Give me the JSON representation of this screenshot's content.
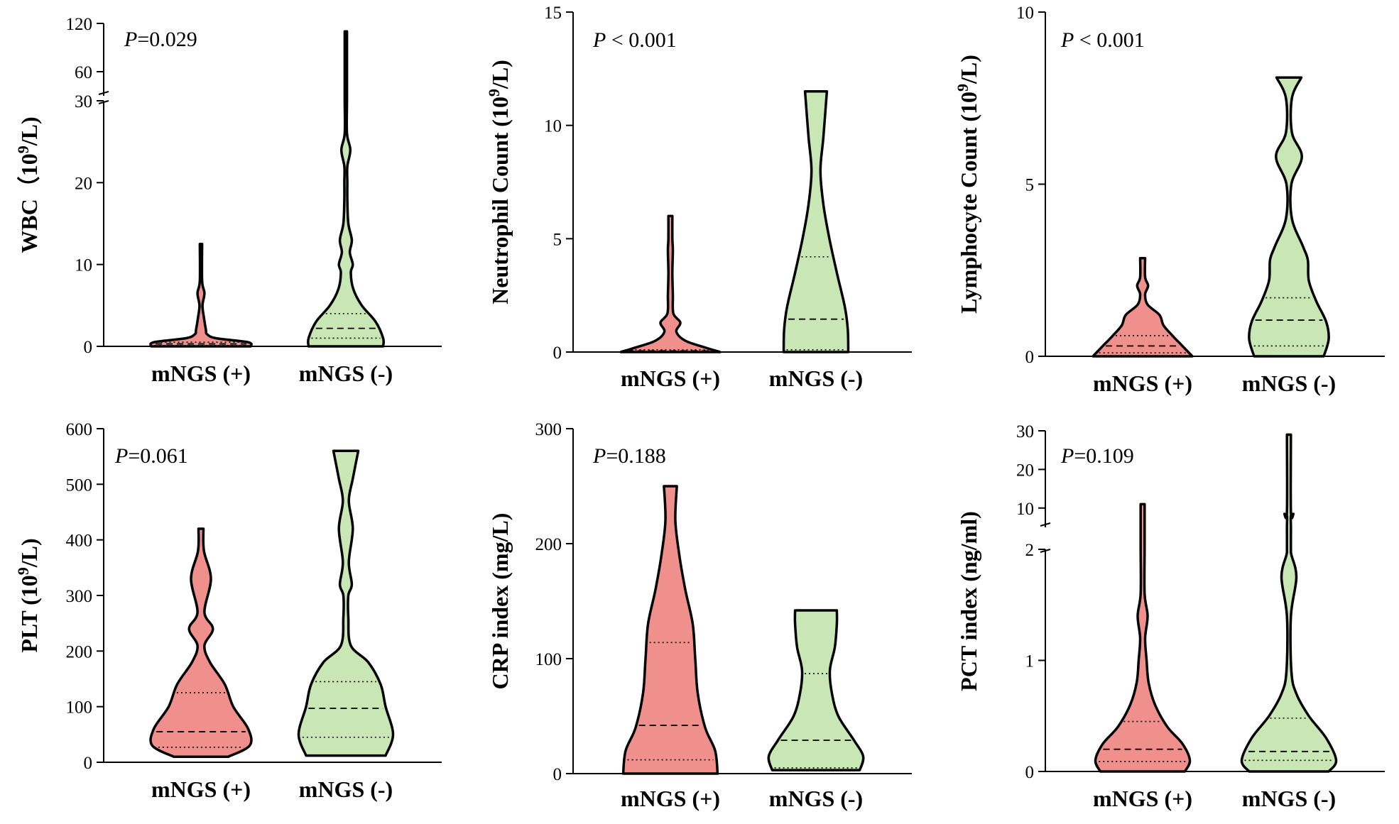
{
  "colors": {
    "positive": "#f0908c",
    "negative": "#c9e7b5",
    "stroke": "#000000"
  },
  "chart_data": [
    {
      "type": "violin",
      "ylabel_prefix": "WBC（10",
      "ylabel_sup": "9",
      "ylabel_suffix": "/L)",
      "p_label": "P",
      "p_text": "=0.029",
      "categories": [
        "mNGS (+)",
        "mNGS (-)"
      ],
      "y_segments": [
        {
          "range": [
            0,
            30
          ],
          "ticks": [
            0,
            10,
            20,
            30
          ]
        },
        {
          "range": [
            30,
            120
          ],
          "ticks": [
            60,
            120
          ]
        }
      ],
      "series": [
        {
          "name": "mNGS (+)",
          "color_key": "positive",
          "min": 0,
          "max": 12.5,
          "q1": 0.1,
          "median": 0.3,
          "q3": 0.5,
          "density": [
            [
              0,
              1.0
            ],
            [
              0.5,
              0.95
            ],
            [
              1,
              0.3
            ],
            [
              1.5,
              0.12
            ],
            [
              2,
              0.1
            ],
            [
              3.5,
              0.06
            ],
            [
              5,
              0.03
            ],
            [
              6.5,
              0.07
            ],
            [
              8,
              0.02
            ],
            [
              12.5,
              0.02
            ]
          ]
        },
        {
          "name": "mNGS (-)",
          "color_key": "negative",
          "min": 0,
          "max": 110,
          "q1": 1.0,
          "median": 2.2,
          "q3": 4.0,
          "density": [
            [
              0,
              0.75
            ],
            [
              1,
              0.75
            ],
            [
              3,
              0.6
            ],
            [
              5,
              0.32
            ],
            [
              7,
              0.15
            ],
            [
              9,
              0.1
            ],
            [
              10,
              0.14
            ],
            [
              11.5,
              0.08
            ],
            [
              13,
              0.12
            ],
            [
              15,
              0.05
            ],
            [
              18,
              0.03
            ],
            [
              20,
              0.03
            ],
            [
              22,
              0.03
            ],
            [
              24,
              0.09
            ],
            [
              26,
              0.02
            ],
            [
              30,
              0.02
            ],
            [
              50,
              0.015
            ],
            [
              110,
              0.015
            ]
          ]
        }
      ]
    },
    {
      "type": "violin",
      "ylabel_prefix": "Neutrophil Count (10",
      "ylabel_sup": "9",
      "ylabel_suffix": "/L)",
      "p_label": "P",
      "p_text": " < 0.001",
      "categories": [
        "mNGS (+)",
        "mNGS (-)"
      ],
      "y_segments": [
        {
          "range": [
            0,
            15
          ],
          "ticks": [
            0,
            5,
            10,
            15
          ]
        }
      ],
      "series": [
        {
          "name": "mNGS (+)",
          "color_key": "positive",
          "min": 0,
          "max": 6,
          "q1": 0.02,
          "median": 0.05,
          "q3": 0.1,
          "density": [
            [
              0,
              1.0
            ],
            [
              0.2,
              0.7
            ],
            [
              0.5,
              0.3
            ],
            [
              0.9,
              0.12
            ],
            [
              1.3,
              0.2
            ],
            [
              1.7,
              0.06
            ],
            [
              2.5,
              0.05
            ],
            [
              3.5,
              0.04
            ],
            [
              4.5,
              0.05
            ],
            [
              5,
              0.04
            ],
            [
              6,
              0.04
            ]
          ]
        },
        {
          "name": "mNGS (-)",
          "color_key": "negative",
          "min": 0,
          "max": 11.5,
          "q1": 0.1,
          "median": 1.45,
          "q3": 4.2,
          "density": [
            [
              0,
              0.65
            ],
            [
              1,
              0.64
            ],
            [
              2,
              0.58
            ],
            [
              3.5,
              0.42
            ],
            [
              5,
              0.27
            ],
            [
              6.5,
              0.15
            ],
            [
              8,
              0.09
            ],
            [
              9.5,
              0.15
            ],
            [
              11.5,
              0.22
            ]
          ]
        }
      ]
    },
    {
      "type": "violin",
      "ylabel_prefix": "Lymphocyte Count (10",
      "ylabel_sup": "9",
      "ylabel_suffix": "/L)",
      "p_label": "P",
      "p_text": " < 0.001",
      "categories": [
        "mNGS (+)",
        "mNGS (-)"
      ],
      "y_segments": [
        {
          "range": [
            0,
            10
          ],
          "ticks": [
            0,
            5,
            10
          ]
        }
      ],
      "series": [
        {
          "name": "mNGS (+)",
          "color_key": "positive",
          "min": 0,
          "max": 2.85,
          "q1": 0.1,
          "median": 0.3,
          "q3": 0.6,
          "density": [
            [
              0,
              1.0
            ],
            [
              0.3,
              0.8
            ],
            [
              0.6,
              0.6
            ],
            [
              0.9,
              0.42
            ],
            [
              1.2,
              0.34
            ],
            [
              1.5,
              0.1
            ],
            [
              1.8,
              0.05
            ],
            [
              2.05,
              0.11
            ],
            [
              2.3,
              0.05
            ],
            [
              2.85,
              0.05
            ]
          ]
        },
        {
          "name": "mNGS (-)",
          "color_key": "negative",
          "min": 0,
          "max": 8.1,
          "q1": 0.3,
          "median": 1.05,
          "q3": 1.7,
          "density": [
            [
              0,
              0.7
            ],
            [
              0.5,
              0.8
            ],
            [
              1,
              0.75
            ],
            [
              1.6,
              0.55
            ],
            [
              2.2,
              0.4
            ],
            [
              2.8,
              0.38
            ],
            [
              3.2,
              0.28
            ],
            [
              4,
              0.06
            ],
            [
              5,
              0.05
            ],
            [
              5.8,
              0.26
            ],
            [
              6.5,
              0.06
            ],
            [
              7.5,
              0.06
            ],
            [
              8.1,
              0.25
            ]
          ]
        }
      ]
    },
    {
      "type": "violin",
      "ylabel_prefix": "PLT (10",
      "ylabel_sup": "9",
      "ylabel_suffix": "/L)",
      "p_label": "P",
      "p_text": "=0.061",
      "categories": [
        "mNGS (+)",
        "mNGS (-)"
      ],
      "y_segments": [
        {
          "range": [
            0,
            600
          ],
          "ticks": [
            0,
            100,
            200,
            300,
            400,
            500,
            600
          ]
        }
      ],
      "series": [
        {
          "name": "mNGS (+)",
          "color_key": "positive",
          "min": 10,
          "max": 420,
          "q1": 27,
          "median": 55,
          "q3": 125,
          "density": [
            [
              10,
              0.55
            ],
            [
              30,
              0.98
            ],
            [
              60,
              0.95
            ],
            [
              100,
              0.65
            ],
            [
              140,
              0.48
            ],
            [
              180,
              0.18
            ],
            [
              210,
              0.07
            ],
            [
              240,
              0.24
            ],
            [
              270,
              0.07
            ],
            [
              330,
              0.2
            ],
            [
              380,
              0.06
            ],
            [
              420,
              0.05
            ]
          ]
        },
        {
          "name": "mNGS (-)",
          "color_key": "negative",
          "min": 12,
          "max": 560,
          "q1": 45,
          "median": 97,
          "q3": 145,
          "density": [
            [
              12,
              0.8
            ],
            [
              50,
              0.95
            ],
            [
              100,
              0.8
            ],
            [
              140,
              0.7
            ],
            [
              180,
              0.45
            ],
            [
              210,
              0.1
            ],
            [
              260,
              0.05
            ],
            [
              300,
              0.05
            ],
            [
              320,
              0.12
            ],
            [
              360,
              0.06
            ],
            [
              420,
              0.14
            ],
            [
              470,
              0.06
            ],
            [
              510,
              0.14
            ],
            [
              560,
              0.25
            ]
          ]
        }
      ]
    },
    {
      "type": "violin",
      "ylabel_prefix": "CRP index (mg/L)",
      "ylabel_sup": "",
      "ylabel_suffix": "",
      "p_label": "P",
      "p_text": "=0.188",
      "categories": [
        "mNGS (+)",
        "mNGS (-)"
      ],
      "y_segments": [
        {
          "range": [
            0,
            300
          ],
          "ticks": [
            0,
            100,
            200,
            300
          ]
        }
      ],
      "series": [
        {
          "name": "mNGS (+)",
          "color_key": "positive",
          "min": 0,
          "max": 250,
          "q1": 12,
          "median": 42,
          "q3": 114,
          "density": [
            [
              0,
              0.95
            ],
            [
              20,
              0.9
            ],
            [
              40,
              0.7
            ],
            [
              70,
              0.55
            ],
            [
              100,
              0.5
            ],
            [
              130,
              0.45
            ],
            [
              160,
              0.3
            ],
            [
              190,
              0.18
            ],
            [
              220,
              0.1
            ],
            [
              250,
              0.13
            ]
          ]
        },
        {
          "name": "mNGS (-)",
          "color_key": "negative",
          "min": 3,
          "max": 142,
          "q1": 5,
          "median": 29,
          "q3": 87,
          "density": [
            [
              3,
              0.88
            ],
            [
              15,
              0.95
            ],
            [
              30,
              0.75
            ],
            [
              50,
              0.45
            ],
            [
              70,
              0.32
            ],
            [
              90,
              0.28
            ],
            [
              110,
              0.38
            ],
            [
              130,
              0.42
            ],
            [
              142,
              0.42
            ]
          ]
        }
      ]
    },
    {
      "type": "violin",
      "ylabel_prefix": "PCT index (ng/ml)",
      "ylabel_sup": "",
      "ylabel_suffix": "",
      "p_label": "P",
      "p_text": "=0.109",
      "categories": [
        "mNGS (+)",
        "mNGS (-)"
      ],
      "y_segments": [
        {
          "range": [
            0,
            2
          ],
          "ticks": [
            0,
            1,
            2
          ]
        },
        {
          "range": [
            5,
            30
          ],
          "ticks": [
            10,
            20,
            30
          ]
        }
      ],
      "series": [
        {
          "name": "mNGS (+)",
          "color_key": "positive",
          "min": 0,
          "max": 11,
          "q1": 0.09,
          "median": 0.2,
          "q3": 0.45,
          "density": [
            [
              0,
              0.85
            ],
            [
              0.1,
              0.95
            ],
            [
              0.25,
              0.8
            ],
            [
              0.4,
              0.5
            ],
            [
              0.6,
              0.25
            ],
            [
              0.8,
              0.12
            ],
            [
              1,
              0.08
            ],
            [
              1.2,
              0.05
            ],
            [
              1.4,
              0.1
            ],
            [
              1.6,
              0.04
            ],
            [
              2,
              0.04
            ],
            [
              5,
              0.04
            ],
            [
              11,
              0.04
            ]
          ]
        },
        {
          "name": "mNGS (-)",
          "color_key": "negative",
          "min": 0,
          "max": 29,
          "q1": 0.1,
          "median": 0.18,
          "q3": 0.48,
          "density": [
            [
              0,
              0.8
            ],
            [
              0.1,
              0.95
            ],
            [
              0.3,
              0.75
            ],
            [
              0.5,
              0.4
            ],
            [
              0.7,
              0.15
            ],
            [
              0.9,
              0.05
            ],
            [
              1.4,
              0.04
            ],
            [
              1.75,
              0.15
            ],
            [
              1.95,
              0.05
            ],
            [
              2,
              0.04
            ],
            [
              5,
              0.04
            ],
            [
              8,
              0.04
            ],
            [
              8.5,
              0.09
            ],
            [
              9,
              0.04
            ],
            [
              29,
              0.04
            ]
          ]
        }
      ]
    }
  ]
}
